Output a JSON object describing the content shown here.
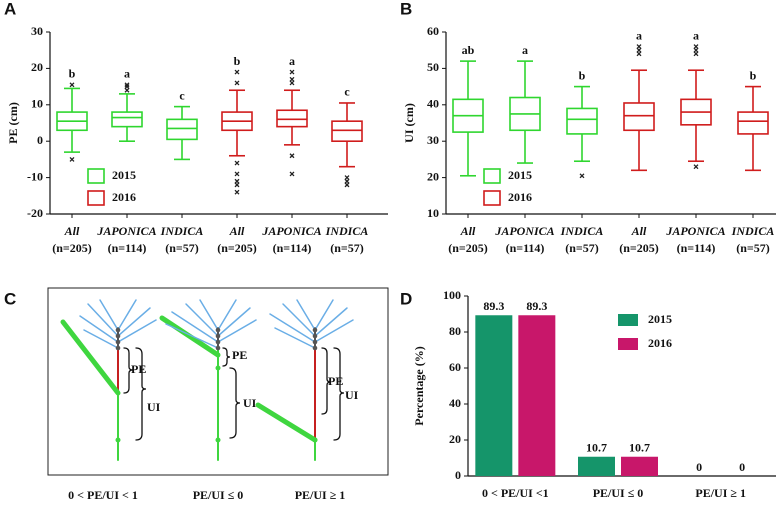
{
  "chart_data": [
    {
      "type": "box",
      "panel": "A",
      "y_label": "PE (cm)",
      "categories": [
        "All",
        "JAPONICA",
        "INDICA",
        "All",
        "JAPONICA",
        "INDICA"
      ],
      "category_counts": [
        "(n=205)",
        "(n=114)",
        "(n=57)",
        "(n=205)",
        "(n=114)",
        "(n=57)"
      ],
      "ylim": [
        -20,
        30
      ],
      "yticks": [
        -20,
        -10,
        0,
        10,
        20,
        30
      ],
      "series": [
        {
          "name": "2015",
          "color": "#2fd62f",
          "boxes": [
            {
              "min": -3,
              "q1": 3,
              "median": 5.5,
              "q3": 8,
              "max": 14.5,
              "outliers": [
                15.5,
                -5
              ],
              "label": "b"
            },
            {
              "min": 0,
              "q1": 4,
              "median": 6.5,
              "q3": 8,
              "max": 13,
              "outliers": [
                14,
                15,
                15.5
              ],
              "label": "a"
            },
            {
              "min": -5,
              "q1": 0.5,
              "median": 3.5,
              "q3": 6,
              "max": 9.5,
              "outliers": [],
              "label": "c"
            }
          ]
        },
        {
          "name": "2016",
          "color": "#d01c1c",
          "boxes": [
            {
              "min": -4,
              "q1": 3,
              "median": 5.5,
              "q3": 8,
              "max": 14,
              "outliers": [
                16,
                19,
                -6,
                -9,
                -11,
                -12,
                -14
              ],
              "label": "b"
            },
            {
              "min": -1,
              "q1": 4,
              "median": 6,
              "q3": 8.5,
              "max": 14,
              "outliers": [
                16,
                17,
                19,
                -4,
                -9
              ],
              "label": "a"
            },
            {
              "min": -7,
              "q1": 0,
              "median": 3,
              "q3": 5.5,
              "max": 10.5,
              "outliers": [
                -10,
                -11,
                -12
              ],
              "label": "c"
            }
          ]
        }
      ]
    },
    {
      "type": "box",
      "panel": "B",
      "y_label": "UI (cm)",
      "categories": [
        "All",
        "JAPONICA",
        "INDICA",
        "All",
        "JAPONICA",
        "INDICA"
      ],
      "category_counts": [
        "(n=205)",
        "(n=114)",
        "(n=57)",
        "(n=205)",
        "(n=114)",
        "(n=57)"
      ],
      "ylim": [
        10,
        60
      ],
      "yticks": [
        10,
        20,
        30,
        40,
        50,
        60
      ],
      "series": [
        {
          "name": "2015",
          "color": "#2fd62f",
          "boxes": [
            {
              "min": 20.5,
              "q1": 32.5,
              "median": 37,
              "q3": 41.5,
              "max": 52,
              "outliers": [],
              "label": "ab"
            },
            {
              "min": 24,
              "q1": 33,
              "median": 37.5,
              "q3": 42,
              "max": 52,
              "outliers": [],
              "label": "a"
            },
            {
              "min": 24.5,
              "q1": 32,
              "median": 36,
              "q3": 39,
              "max": 45,
              "outliers": [
                20.5
              ],
              "label": "b"
            }
          ]
        },
        {
          "name": "2016",
          "color": "#d01c1c",
          "boxes": [
            {
              "min": 22,
              "q1": 33,
              "median": 37,
              "q3": 40.5,
              "max": 49.5,
              "outliers": [
                54,
                55,
                56
              ],
              "label": "a"
            },
            {
              "min": 24.5,
              "q1": 34.5,
              "median": 38,
              "q3": 41.5,
              "max": 49.5,
              "outliers": [
                23,
                54,
                55,
                56
              ],
              "label": "a"
            },
            {
              "min": 22,
              "q1": 32,
              "median": 35.5,
              "q3": 38,
              "max": 45,
              "outliers": [],
              "label": "b"
            }
          ]
        }
      ]
    },
    {
      "type": "bar",
      "panel": "D",
      "y_label": "Percentage (%)",
      "categories": [
        "0 < PE/UI <1",
        "PE/UI ≤ 0",
        "PE/UI ≥ 1"
      ],
      "ylim": [
        0,
        100
      ],
      "yticks": [
        0,
        20,
        40,
        60,
        80,
        100
      ],
      "legend": "upper right",
      "series": [
        {
          "name": "2015",
          "color": "#15956a",
          "values": [
            89.3,
            10.7,
            0
          ]
        },
        {
          "name": "2016",
          "color": "#c8176a",
          "values": [
            89.3,
            10.7,
            0
          ]
        }
      ]
    }
  ],
  "diagram": {
    "panel": "C",
    "plants": [
      {
        "pe": "PE",
        "ui": "UI",
        "caption": "0 < PE/UI < 1"
      },
      {
        "pe": "PE",
        "ui": "UI",
        "caption": "PE/UI ≤ 0"
      },
      {
        "pe": "PE",
        "ui": "UI",
        "caption": "PE/UI ≥ 1"
      }
    ]
  }
}
